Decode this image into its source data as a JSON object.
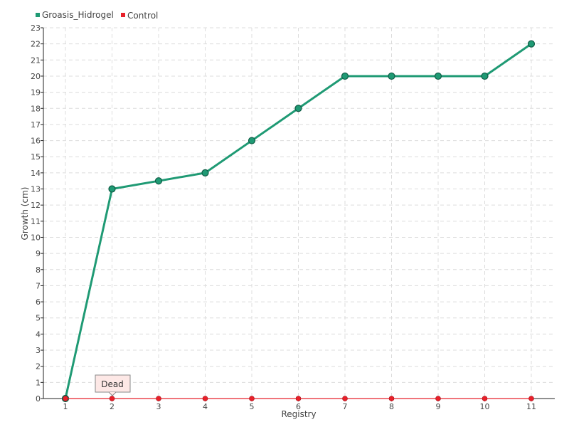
{
  "chart_data": {
    "type": "line",
    "xlabel": "Registry",
    "ylabel": "Growth (cm)",
    "categories": [
      "1",
      "2",
      "3",
      "4",
      "5",
      "6",
      "7",
      "8",
      "9",
      "10",
      "11"
    ],
    "ylim": [
      0,
      23
    ],
    "yticks": [
      0,
      1,
      2,
      3,
      4,
      5,
      6,
      7,
      8,
      9,
      10,
      11,
      12,
      13,
      14,
      15,
      16,
      17,
      18,
      19,
      20,
      21,
      22,
      23
    ],
    "grid": true,
    "legend_position": "top-left",
    "series": [
      {
        "name": "Groasis_Hidrogel",
        "color": "#1f9a74",
        "values": [
          0,
          13,
          13.5,
          14,
          16,
          18,
          20,
          20,
          20,
          20,
          22
        ]
      },
      {
        "name": "Control",
        "color": "#e8202a",
        "values": [
          0,
          0,
          0,
          0,
          0,
          0,
          0,
          0,
          0,
          0,
          0
        ]
      }
    ],
    "annotations": [
      {
        "text": "Dead",
        "x": "2",
        "y": 0
      }
    ]
  }
}
